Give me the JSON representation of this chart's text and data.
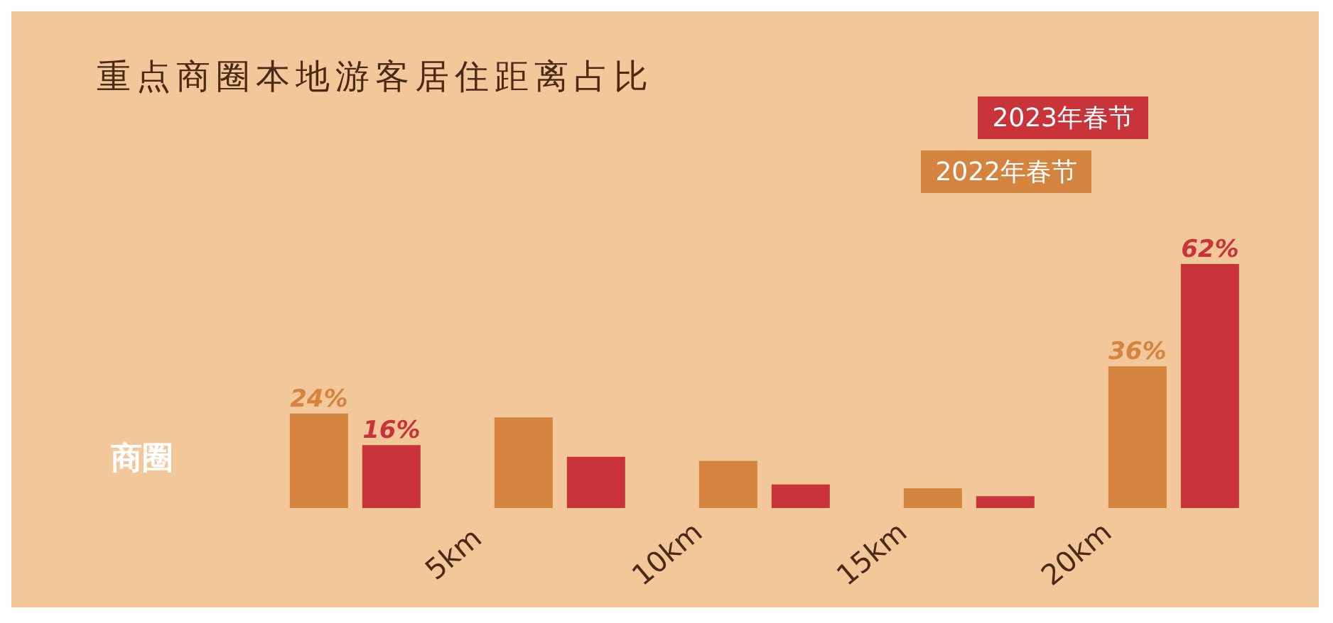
{
  "chart_data": {
    "type": "bar",
    "title": "重点商圈本地游客居住距离占比",
    "categories": [
      null,
      null,
      null,
      null,
      null
    ],
    "series": [
      {
        "name": "2022年春节",
        "color": "#d4843f",
        "values": [
          24,
          23,
          12,
          5,
          36
        ],
        "value_labels": [
          "24%",
          null,
          null,
          null,
          "36%"
        ]
      },
      {
        "name": "2023年春节",
        "color": "#c8343a",
        "values": [
          16,
          13,
          6,
          3,
          62
        ],
        "value_labels": [
          "16%",
          null,
          null,
          null,
          "62%"
        ]
      }
    ],
    "annotations": [
      "商圈",
      "5km",
      "10km",
      "15km",
      "20km"
    ],
    "legend": "top right"
  }
}
